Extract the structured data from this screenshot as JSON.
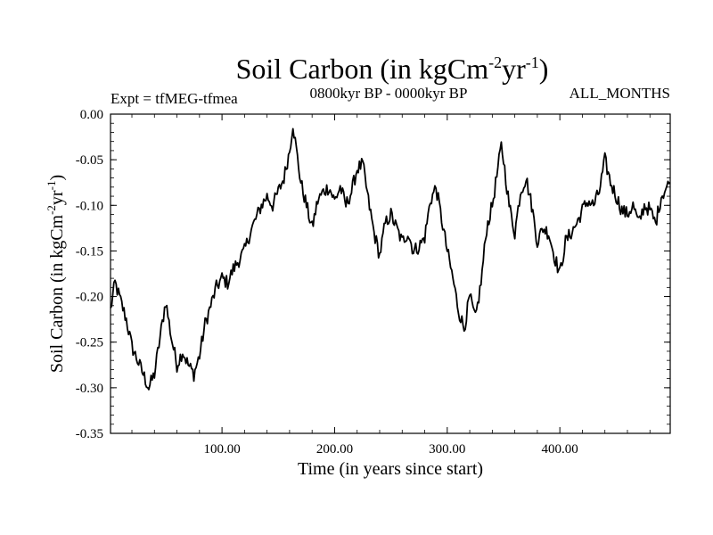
{
  "chart_data": {
    "type": "line",
    "title_main": "Soil Carbon (in kgCm",
    "title_sup1": "-2",
    "title_mid": "yr",
    "title_sup2": "-1",
    "title_end": ")",
    "subtitle_left": "Expt = tfMEG-tfmea",
    "subtitle_center": "0800kyr BP - 0000kyr BP",
    "subtitle_right": "ALL_MONTHS",
    "xlabel": "Time (in years since start)",
    "ylabel_main": "Soil Carbon (in kgCm",
    "ylabel_sup1": "-2",
    "ylabel_mid": "yr",
    "ylabel_sup2": "-1",
    "ylabel_end": ")",
    "xlim": [
      1,
      498
    ],
    "ylim": [
      -0.35,
      0.0
    ],
    "xticks": [
      {
        "value": 100,
        "label": "100.00"
      },
      {
        "value": 200,
        "label": "200.00"
      },
      {
        "value": 300,
        "label": "300.00"
      },
      {
        "value": 400,
        "label": "400.00"
      }
    ],
    "yticks": [
      {
        "value": 0.0,
        "label": "0.00"
      },
      {
        "value": -0.05,
        "label": "-0.05"
      },
      {
        "value": -0.1,
        "label": "-0.10"
      },
      {
        "value": -0.15,
        "label": "-0.15"
      },
      {
        "value": -0.2,
        "label": "-0.20"
      },
      {
        "value": -0.25,
        "label": "-0.25"
      },
      {
        "value": -0.3,
        "label": "-0.30"
      },
      {
        "value": -0.35,
        "label": "-0.35"
      }
    ],
    "series": [
      {
        "name": "Soil Carbon",
        "x": [
          1,
          5,
          10,
          15,
          20,
          25,
          30,
          35,
          40,
          45,
          50,
          55,
          60,
          65,
          70,
          75,
          80,
          85,
          90,
          95,
          100,
          105,
          110,
          115,
          120,
          125,
          130,
          135,
          140,
          145,
          150,
          155,
          160,
          163,
          165,
          170,
          175,
          180,
          185,
          190,
          195,
          200,
          205,
          210,
          215,
          220,
          225,
          230,
          235,
          240,
          245,
          250,
          255,
          260,
          265,
          270,
          275,
          280,
          285,
          290,
          295,
          300,
          305,
          310,
          315,
          320,
          325,
          330,
          335,
          340,
          345,
          348,
          350,
          355,
          360,
          365,
          370,
          375,
          380,
          385,
          390,
          395,
          400,
          405,
          410,
          415,
          420,
          425,
          430,
          435,
          440,
          445,
          450,
          455,
          460,
          465,
          470,
          475,
          480,
          485,
          490,
          495,
          498
        ],
        "y": [
          -0.215,
          -0.185,
          -0.205,
          -0.225,
          -0.255,
          -0.27,
          -0.285,
          -0.3,
          -0.285,
          -0.245,
          -0.205,
          -0.245,
          -0.275,
          -0.26,
          -0.275,
          -0.285,
          -0.265,
          -0.23,
          -0.21,
          -0.19,
          -0.18,
          -0.185,
          -0.17,
          -0.16,
          -0.15,
          -0.13,
          -0.115,
          -0.1,
          -0.09,
          -0.1,
          -0.085,
          -0.07,
          -0.04,
          -0.01,
          -0.03,
          -0.075,
          -0.1,
          -0.125,
          -0.095,
          -0.085,
          -0.08,
          -0.095,
          -0.08,
          -0.1,
          -0.085,
          -0.06,
          -0.055,
          -0.095,
          -0.13,
          -0.155,
          -0.12,
          -0.11,
          -0.125,
          -0.14,
          -0.13,
          -0.15,
          -0.145,
          -0.135,
          -0.095,
          -0.08,
          -0.115,
          -0.15,
          -0.18,
          -0.215,
          -0.235,
          -0.2,
          -0.225,
          -0.185,
          -0.125,
          -0.1,
          -0.06,
          -0.035,
          -0.05,
          -0.1,
          -0.13,
          -0.085,
          -0.07,
          -0.1,
          -0.14,
          -0.125,
          -0.13,
          -0.155,
          -0.175,
          -0.14,
          -0.13,
          -0.12,
          -0.105,
          -0.095,
          -0.1,
          -0.085,
          -0.05,
          -0.075,
          -0.09,
          -0.105,
          -0.11,
          -0.1,
          -0.12,
          -0.1,
          -0.105,
          -0.12,
          -0.09,
          -0.08,
          -0.075
        ]
      }
    ]
  }
}
